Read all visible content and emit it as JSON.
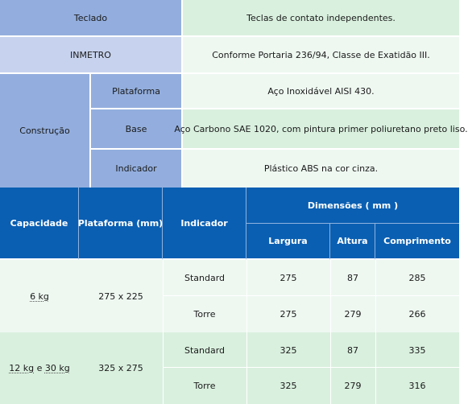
{
  "spec_table": {
    "rows": [
      {
        "label": "Teclado",
        "value": "Teclas de contato independentes."
      },
      {
        "label": "INMETRO",
        "value": "Conforme Portaria 236/94, Classe de Exatidão III."
      }
    ],
    "construction": {
      "label": "Construção",
      "items": [
        {
          "label": "Plataforma",
          "value": "Aço Inoxidável AISI 430."
        },
        {
          "label": "Base",
          "value": "Aço Carbono SAE 1020, com pintura primer poliuretano preto liso."
        },
        {
          "label": "Indicador",
          "value": "Plástico ABS na cor cinza."
        }
      ]
    }
  },
  "dims_table": {
    "headers": {
      "capacity": "Capacidade",
      "platform": "Plataforma  (mm)",
      "indicator": "Indicador",
      "dimensions": "Dimensões  ( mm )",
      "width": "Largura",
      "height": "Altura",
      "length": "Comprimento"
    },
    "groups": [
      {
        "capacity": {
          "a": "6 kg"
        },
        "platform": "275 x 225",
        "rows": [
          {
            "indicator": "Standard",
            "width": "275",
            "height": "87",
            "length": "285"
          },
          {
            "indicator": "Torre",
            "width": "275",
            "height": "279",
            "length": "266"
          }
        ]
      },
      {
        "capacity": {
          "a": "12 kg",
          "joiner": " e ",
          "b": "30 kg"
        },
        "platform": "325 x 275",
        "rows": [
          {
            "indicator": "Standard",
            "width": "325",
            "height": "87",
            "length": "335"
          },
          {
            "indicator": "Torre",
            "width": "325",
            "height": "279",
            "length": "316"
          }
        ]
      }
    ]
  },
  "colors": {
    "label_blue": "#93aede",
    "label_pale_blue": "#c7d3ee",
    "value_green": "#d9f0de",
    "value_pale_green": "#eef8f1",
    "header_blue": "#0a5fb2"
  }
}
